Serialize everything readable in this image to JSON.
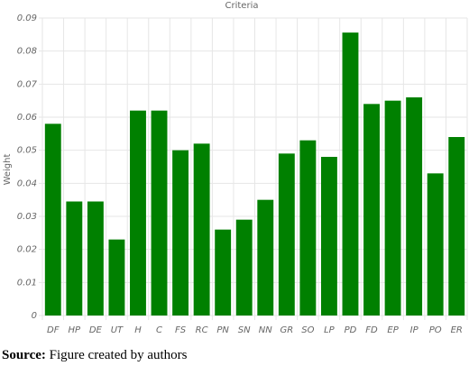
{
  "chart_data": {
    "type": "bar",
    "title": "Criteria",
    "y_label": "Weight",
    "categories": [
      "DF",
      "HP",
      "DE",
      "UT",
      "H",
      "C",
      "FS",
      "RC",
      "PN",
      "SN",
      "NN",
      "GR",
      "SO",
      "LP",
      "PD",
      "FD",
      "EP",
      "IP",
      "PO",
      "ER"
    ],
    "values": [
      0.058,
      0.0345,
      0.0345,
      0.023,
      0.062,
      0.062,
      0.05,
      0.052,
      0.026,
      0.029,
      0.035,
      0.049,
      0.053,
      0.048,
      0.0856,
      0.064,
      0.065,
      0.066,
      0.043,
      0.054
    ],
    "color": "#008000",
    "ylim": [
      0,
      0.09
    ],
    "yticks": [
      0,
      0.01,
      0.02,
      0.03,
      0.04,
      0.05,
      0.06,
      0.07,
      0.08,
      0.09
    ],
    "grid": true
  },
  "caption": {
    "label": "Source:",
    "text": "Figure created by authors"
  }
}
